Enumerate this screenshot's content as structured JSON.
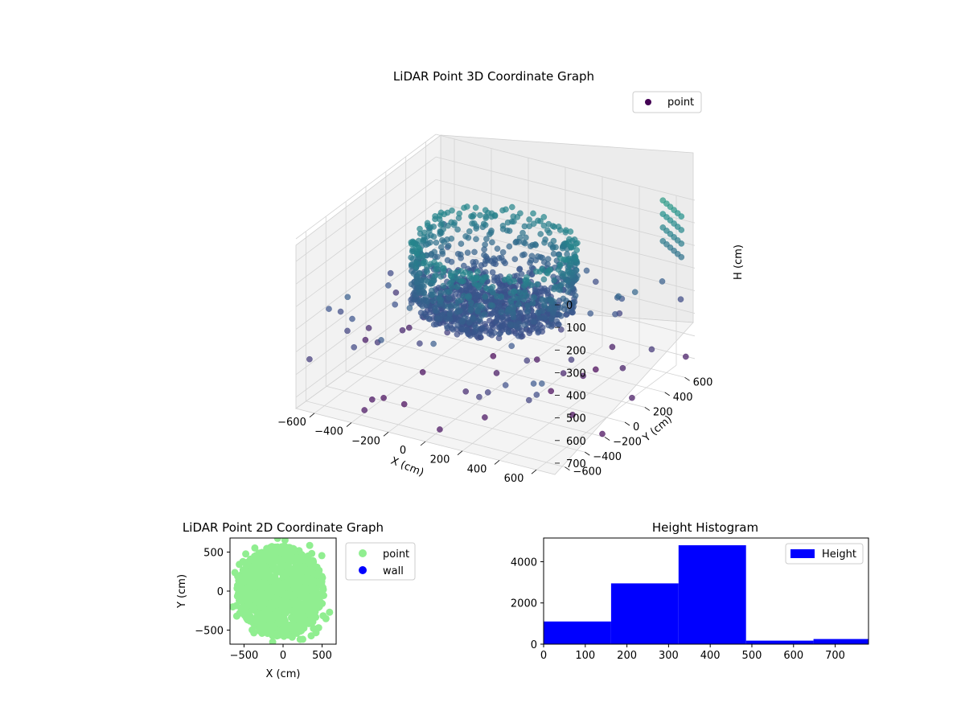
{
  "colors": {
    "viridis_dark": "#440154",
    "viridis_mid": "#3b528b",
    "viridis_teal": "#21908c",
    "scatter2d_point": "#90ee90",
    "scatter2d_wall": "#0000ff",
    "hist_bar": "#0000ff"
  },
  "chart_data": [
    {
      "type": "scatter",
      "projection": "3d",
      "title": "LiDAR Point 3D Coordinate Graph",
      "xlabel": "X (cm)",
      "ylabel": "Y (cm)",
      "zlabel": "H (cm)",
      "x_ticks": [
        "−600",
        "−400",
        "−200",
        "0",
        "200",
        "400",
        "600"
      ],
      "y_ticks": [
        "−600",
        "−400",
        "−200",
        "0",
        "200",
        "400",
        "600"
      ],
      "z_ticks": [
        "0",
        "100",
        "200",
        "300",
        "400",
        "500",
        "600",
        "700"
      ],
      "xlim": [
        -700,
        700
      ],
      "ylim": [
        -700,
        700
      ],
      "zlim": [
        0,
        750
      ],
      "z_inverted": true,
      "colormap": "viridis",
      "legend": [
        "point"
      ],
      "legend_position": "top-right",
      "grid": true
    },
    {
      "type": "scatter",
      "title": "LiDAR Point 2D Coordinate Graph",
      "xlabel": "X (cm)",
      "ylabel": "Y (cm)",
      "x_ticks": [
        "−500",
        "0",
        "500"
      ],
      "y_ticks": [
        "500",
        "0",
        "−500"
      ],
      "xlim": [
        -680,
        680
      ],
      "ylim": [
        -680,
        680
      ],
      "series": [
        {
          "name": "point",
          "color": "#90ee90"
        },
        {
          "name": "wall",
          "color": "#0000ff"
        }
      ],
      "legend_position": "outside-right"
    },
    {
      "type": "bar",
      "title": "Height Histogram",
      "xlabel": "",
      "ylabel": "",
      "bin_edges": [
        0,
        162,
        324,
        486,
        648,
        780
      ],
      "values": [
        1100,
        2950,
        4800,
        170,
        250
      ],
      "x_ticks": [
        "0",
        "100",
        "200",
        "300",
        "400",
        "500",
        "600",
        "700"
      ],
      "y_ticks": [
        "0",
        "2000",
        "4000"
      ],
      "xlim": [
        0,
        780
      ],
      "ylim": [
        0,
        5150
      ],
      "series": [
        {
          "name": "Height",
          "color": "#0000ff"
        }
      ],
      "legend_position": "top-right"
    }
  ]
}
